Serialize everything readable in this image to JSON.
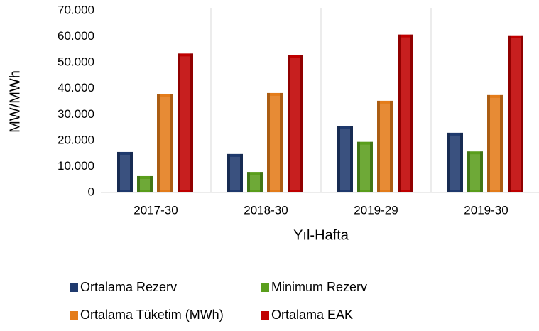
{
  "chart_data": {
    "type": "bar",
    "y_label": "MW/MWh",
    "x_label": "Yıl-Hafta",
    "categories": [
      "2017-30",
      "2018-30",
      "2019-29",
      "2019-30"
    ],
    "series": [
      {
        "name": "Ortalama Rezerv",
        "color": "#1f3a6e",
        "values": [
          15600,
          14800,
          25700,
          23000
        ]
      },
      {
        "name": "Minimum Rezerv",
        "color": "#5a9e1c",
        "values": [
          6300,
          7900,
          19500,
          15800
        ]
      },
      {
        "name": "Ortalama Tüketim (MWh)",
        "color": "#e47c1a",
        "values": [
          38000,
          38300,
          35300,
          37500
        ]
      },
      {
        "name": "Ortalama EAK",
        "color": "#c00000",
        "values": [
          53500,
          53000,
          60800,
          60500
        ]
      }
    ],
    "ylim": [
      0,
      70000
    ],
    "yticks": [
      0,
      {
        "value": 10000,
        "label": "10.000"
      },
      {
        "value": 20000,
        "label": "20.000"
      },
      {
        "value": 30000,
        "label": "30.000"
      },
      {
        "value": 40000,
        "label": "40.000"
      },
      {
        "value": 50000,
        "label": "50.000"
      },
      {
        "value": 60000,
        "label": "60.000"
      },
      {
        "value": 70000,
        "label": "70.000"
      }
    ]
  }
}
